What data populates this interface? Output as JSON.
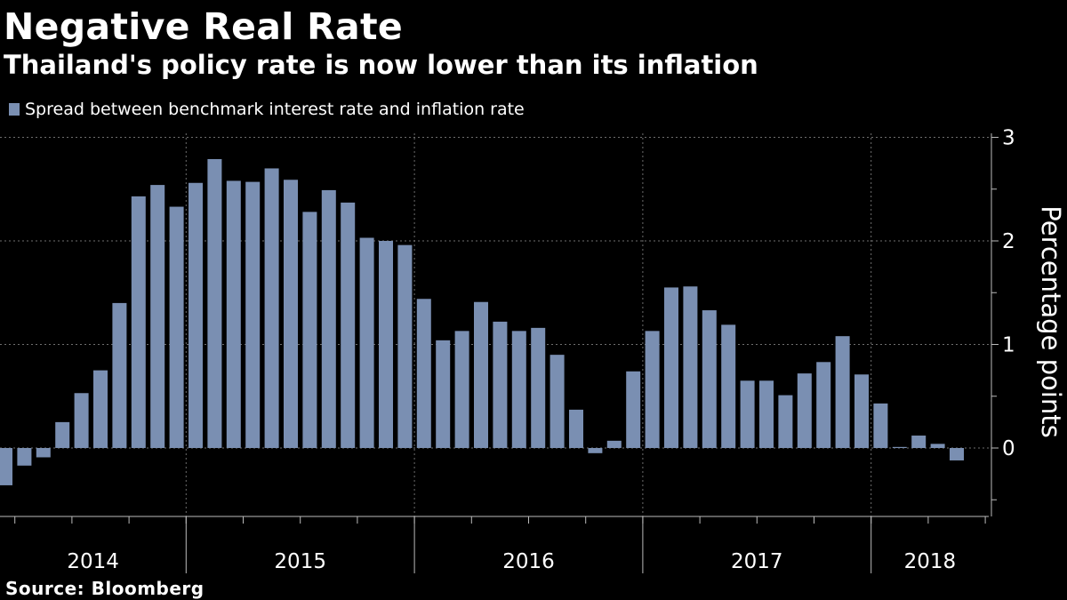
{
  "title": "Negative Real Rate",
  "subtitle": "Thailand's policy rate is now lower than its inflation",
  "legend_label": "Spread between benchmark interest rate and inflation rate",
  "source": "Source: Bloomberg",
  "colors": {
    "bar": "#7a8fb2",
    "background": "#000000",
    "text": "#ffffff",
    "grid": "#6f6f6f"
  },
  "chart_data": {
    "type": "bar",
    "title": "Negative Real Rate",
    "subtitle": "Thailand's policy rate is now lower than its inflation",
    "ylabel": "Percentage points",
    "ylim": [
      -0.65,
      3.1
    ],
    "yticks": [
      0,
      1,
      2,
      3
    ],
    "grid": true,
    "legend_placement": "top-left",
    "series": [
      {
        "name": "Spread between benchmark interest rate and inflation rate",
        "values": [
          -0.36,
          -0.17,
          -0.09,
          0.25,
          0.53,
          0.75,
          1.4,
          2.43,
          2.54,
          2.33,
          2.56,
          2.79,
          2.58,
          2.57,
          2.7,
          2.59,
          2.28,
          2.49,
          2.37,
          2.03,
          2.0,
          1.96,
          1.44,
          1.04,
          1.13,
          1.41,
          1.22,
          1.13,
          1.16,
          0.9,
          0.37,
          -0.05,
          0.07,
          0.74,
          1.13,
          1.55,
          1.56,
          1.33,
          1.19,
          0.65,
          0.65,
          0.51,
          0.72,
          0.83,
          1.08,
          0.71,
          0.43,
          0.01,
          0.12,
          0.04,
          -0.12
        ]
      }
    ],
    "x_labels": [
      "2014",
      "2015",
      "2016",
      "2017",
      "2018"
    ],
    "x_start": "2014-03",
    "x_end": "2018-05"
  }
}
